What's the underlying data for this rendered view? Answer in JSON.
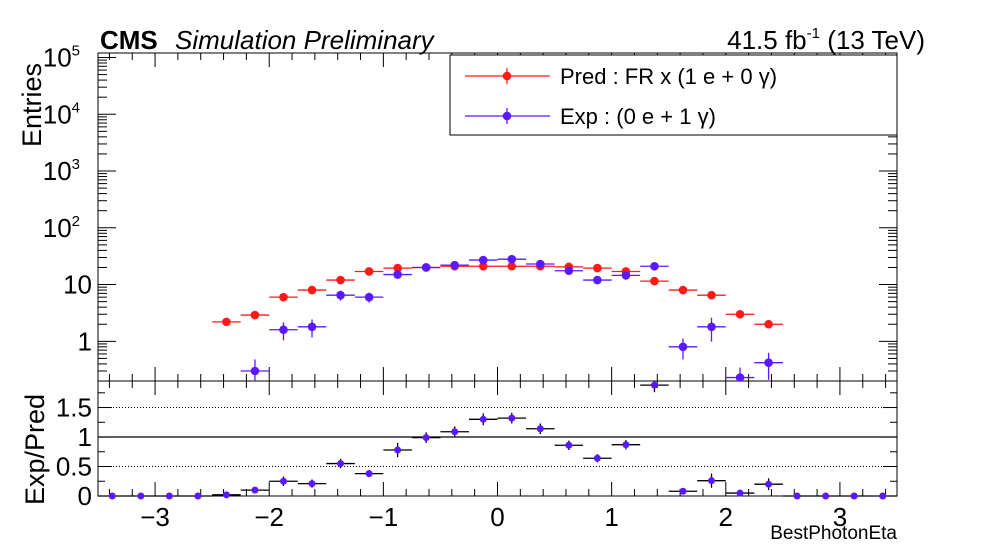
{
  "header": {
    "cms": "CMS",
    "simulation": "Simulation Preliminary",
    "lumi_base": "41.5 fb",
    "lumi_exp": "-1",
    "lumi_tail": " (13 TeV)"
  },
  "colors": {
    "pred": "#ff1a1a",
    "exp": "#5a1aff",
    "ratio": "#5a1aff"
  },
  "chart_data": [
    {
      "type": "scatter",
      "panel": "main",
      "ylabel": "Entries",
      "ylog": true,
      "xlim": [
        -3.5,
        3.5
      ],
      "ylim": [
        0.2,
        120000
      ],
      "yticks": [
        {
          "v": 1,
          "base": "1",
          "exp": ""
        },
        {
          "v": 10,
          "base": "10",
          "exp": ""
        },
        {
          "v": 100,
          "base": "10",
          "exp": "2"
        },
        {
          "v": 1000,
          "base": "10",
          "exp": "3"
        },
        {
          "v": 10000,
          "base": "10",
          "exp": "4"
        },
        {
          "v": 100000,
          "base": "10",
          "exp": "5"
        }
      ],
      "legend_placement": "top-right",
      "series": [
        {
          "name": "Pred : FR x (1 e + 0 γ)",
          "x": [
            -2.375,
            -2.125,
            -1.875,
            -1.625,
            -1.375,
            -1.125,
            -0.875,
            -0.625,
            -0.375,
            -0.125,
            0.125,
            0.375,
            0.625,
            0.875,
            1.125,
            1.375,
            1.625,
            1.875,
            2.125,
            2.375
          ],
          "y": [
            2.2,
            2.9,
            6.0,
            8.0,
            12.0,
            17.0,
            19.5,
            20.0,
            21.0,
            21.0,
            21.0,
            21.0,
            20.5,
            19.5,
            17.0,
            11.5,
            8.0,
            6.5,
            3.0,
            2.0
          ],
          "yerr_rel": [
            0.1,
            0.1,
            0.08,
            0.07,
            0.06,
            0.05,
            0.05,
            0.05,
            0.05,
            0.05,
            0.05,
            0.05,
            0.05,
            0.05,
            0.05,
            0.06,
            0.07,
            0.08,
            0.1,
            0.1
          ]
        },
        {
          "name": "Exp : (0 e + 1 γ)",
          "x": [
            -2.125,
            -1.875,
            -1.625,
            -1.375,
            -1.125,
            -0.875,
            -0.625,
            -0.375,
            -0.125,
            0.125,
            0.375,
            0.625,
            0.875,
            1.125,
            1.375,
            1.625,
            1.875,
            2.125,
            2.375
          ],
          "y": [
            0.3,
            1.6,
            1.8,
            6.5,
            6.0,
            15.0,
            20.0,
            22.0,
            27.0,
            28.0,
            23.0,
            17.5,
            12.0,
            14.5,
            21.0,
            0.8,
            1.8,
            0.23,
            0.42
          ],
          "yerr_rel": [
            0.6,
            0.35,
            0.35,
            0.2,
            0.2,
            0.15,
            0.12,
            0.12,
            0.1,
            0.1,
            0.12,
            0.13,
            0.15,
            0.14,
            0.12,
            0.4,
            0.45,
            0.5,
            0.5
          ]
        }
      ]
    },
    {
      "type": "scatter",
      "panel": "ratio",
      "xlabel": "BestPhotonEta",
      "ylabel": "Exp/Pred",
      "xlim": [
        -3.5,
        3.5
      ],
      "ylim": [
        0,
        1.95
      ],
      "yticks": [
        0,
        0.5,
        1,
        1.5
      ],
      "ytick_labels": [
        "0",
        "0.5",
        "1",
        "1.5"
      ],
      "xticks": [
        -3,
        -2,
        -1,
        0,
        1,
        2,
        3
      ],
      "xtick_labels": [
        "−3",
        "−2",
        "−1",
        "0",
        "1",
        "2",
        "3"
      ],
      "x": [
        -3.375,
        -3.125,
        -2.875,
        -2.625,
        -2.375,
        -2.125,
        -1.875,
        -1.625,
        -1.375,
        -1.125,
        -0.875,
        -0.625,
        -0.375,
        -0.125,
        0.125,
        0.375,
        0.625,
        0.875,
        1.125,
        1.375,
        1.625,
        1.875,
        2.125,
        2.375,
        2.625,
        2.875,
        3.125,
        3.375
      ],
      "y": [
        0,
        0,
        0,
        0,
        0.02,
        0.1,
        0.25,
        0.21,
        0.55,
        0.38,
        0.78,
        0.99,
        1.09,
        1.3,
        1.32,
        1.14,
        0.86,
        0.64,
        0.87,
        1.88,
        0.08,
        0.26,
        0.05,
        0.2,
        0,
        0,
        0,
        0
      ],
      "yerr": [
        0,
        0,
        0,
        0,
        0,
        0.04,
        0.08,
        0.07,
        0.08,
        0.06,
        0.12,
        0.09,
        0.09,
        0.1,
        0.09,
        0.09,
        0.08,
        0.07,
        0.08,
        0.12,
        0.03,
        0.12,
        0.03,
        0.1,
        0,
        0,
        0,
        0
      ]
    }
  ]
}
